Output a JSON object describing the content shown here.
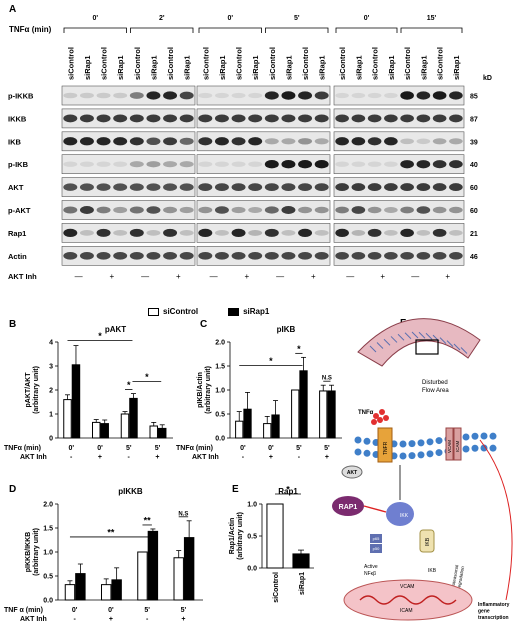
{
  "panel_a": {
    "letter": "A",
    "tnf_label": "TNFα (min)",
    "kd_label": "kD",
    "groups": [
      {
        "time_left": "0'",
        "time_right": "2'"
      },
      {
        "time_left": "0'",
        "time_right": "5'"
      },
      {
        "time_left": "0'",
        "time_right": "15'"
      }
    ],
    "lane_labels": [
      "siControl",
      "siRap1",
      "siControl",
      "siRap1",
      "siControl",
      "siRap1",
      "siControl",
      "siRap1"
    ],
    "rows": [
      {
        "label": "p-IKKB",
        "kd": "85"
      },
      {
        "label": "IKKB",
        "kd": "87"
      },
      {
        "label": "IKB",
        "kd": "39"
      },
      {
        "label": "p-IKB",
        "kd": "40"
      },
      {
        "label": "AKT",
        "kd": "60"
      },
      {
        "label": "p-AKT",
        "kd": "60"
      },
      {
        "label": "Rap1",
        "kd": "21"
      },
      {
        "label": "Actin",
        "kd": "46"
      }
    ],
    "akt_inh_label": "AKT Inh",
    "akt_inh_signs": [
      "—",
      "+",
      "—",
      "+"
    ],
    "legend": {
      "open": "siControl",
      "filled": "siRap1"
    }
  },
  "chart_data": [
    {
      "letter": "B",
      "type": "bar",
      "title": "pAKT",
      "ylabel": "pAKT/AKT\n(arbitrary unit)",
      "ylim": [
        0,
        4
      ],
      "yticks": [
        "0",
        "1",
        "2",
        "3",
        "4"
      ],
      "tnf_label": "TNFα (min)",
      "tnf_values": [
        "0'",
        "0'",
        "5'",
        "5'"
      ],
      "akt_label": "AKT Inh",
      "akt_values": [
        "-",
        "+",
        "-",
        "+"
      ],
      "series": [
        {
          "name": "siControl",
          "values": [
            1.6,
            0.65,
            1.0,
            0.5
          ],
          "errors": [
            0.2,
            0.12,
            0.1,
            0.15
          ]
        },
        {
          "name": "siRap1",
          "values": [
            3.05,
            0.6,
            1.65,
            0.4
          ],
          "errors": [
            0.8,
            0.15,
            0.2,
            0.15
          ]
        }
      ],
      "sig": [
        {
          "text": "*"
        },
        {
          "text": "*"
        },
        {
          "text": "*"
        }
      ]
    },
    {
      "letter": "C",
      "type": "bar",
      "title": "pIKB",
      "ylabel": "pIKB/Actin\n(arbitrary unit)",
      "ylim": [
        0,
        2.0
      ],
      "yticks": [
        "0.0",
        "0.5",
        "1.0",
        "1.5",
        "2.0"
      ],
      "tnf_label": "TNFα (min)",
      "tnf_values": [
        "0'",
        "0'",
        "5'",
        "5'"
      ],
      "akt_label": "AKT Inh",
      "akt_values": [
        "-",
        "+",
        "-",
        "+"
      ],
      "series": [
        {
          "name": "siControl",
          "values": [
            0.35,
            0.3,
            1.0,
            0.98
          ],
          "errors": [
            0.2,
            0.15,
            0.0,
            0.12
          ]
        },
        {
          "name": "siRap1",
          "values": [
            0.6,
            0.48,
            1.4,
            0.98
          ],
          "errors": [
            0.35,
            0.3,
            0.28,
            0.12
          ]
        }
      ],
      "sig": [
        {
          "text": "*"
        },
        {
          "text": "*"
        },
        {
          "text": "N.S"
        }
      ]
    },
    {
      "letter": "D",
      "type": "bar",
      "title": "pIKKB",
      "ylabel": "pIKKB/IKKB\n(arbitrary unit)",
      "ylim": [
        0,
        2.0
      ],
      "yticks": [
        "0.0",
        "0.5",
        "1.0",
        "1.5",
        "2.0"
      ],
      "tnf_label": "TNF α (min)",
      "tnf_values": [
        "0'",
        "0'",
        "5'",
        "5'"
      ],
      "akt_label": "AKT Inh",
      "akt_values": [
        "-",
        "+",
        "-",
        "+"
      ],
      "series": [
        {
          "name": "siControl",
          "values": [
            0.32,
            0.32,
            1.0,
            0.88
          ],
          "errors": [
            0.08,
            0.12,
            0.0,
            0.15
          ]
        },
        {
          "name": "siRap1",
          "values": [
            0.55,
            0.42,
            1.43,
            1.3
          ],
          "errors": [
            0.2,
            0.25,
            0.05,
            0.35
          ]
        }
      ],
      "sig": [
        {
          "text": "**"
        },
        {
          "text": "**"
        },
        {
          "text": "N.S"
        }
      ]
    },
    {
      "letter": "E",
      "type": "bar",
      "title": "Rap1",
      "ylabel": "Rap1/Actin\n(arbitrary unit)",
      "ylim": [
        0,
        1.0
      ],
      "yticks": [
        "0.0",
        "0.5",
        "1.0"
      ],
      "categories": [
        "siControl",
        "siRap1"
      ],
      "values": [
        1.0,
        0.22
      ],
      "errors": [
        0.0,
        0.06
      ],
      "sig": [
        {
          "text": "*"
        }
      ]
    }
  ],
  "panel_f": {
    "letter": "F",
    "labels": {
      "disturbed": "Disturbed\nFlow Area",
      "tnfa": "TNFα",
      "tnfr": "TNFR",
      "vcam_top": "VCAM",
      "icam_top": "ICAM",
      "akt": "AKT",
      "rap1": "RAP1",
      "ikk": "IKK",
      "p65": "p65",
      "p50": "p50",
      "ikb": "IKB",
      "active_nfkb": "Active\nNFκβ",
      "proteasomal": "Proteasomal\ndegradation",
      "vcam": "VCAM",
      "icam": "ICAM",
      "inflammatory": "Inflammatory\ngene\ntranscription"
    }
  }
}
